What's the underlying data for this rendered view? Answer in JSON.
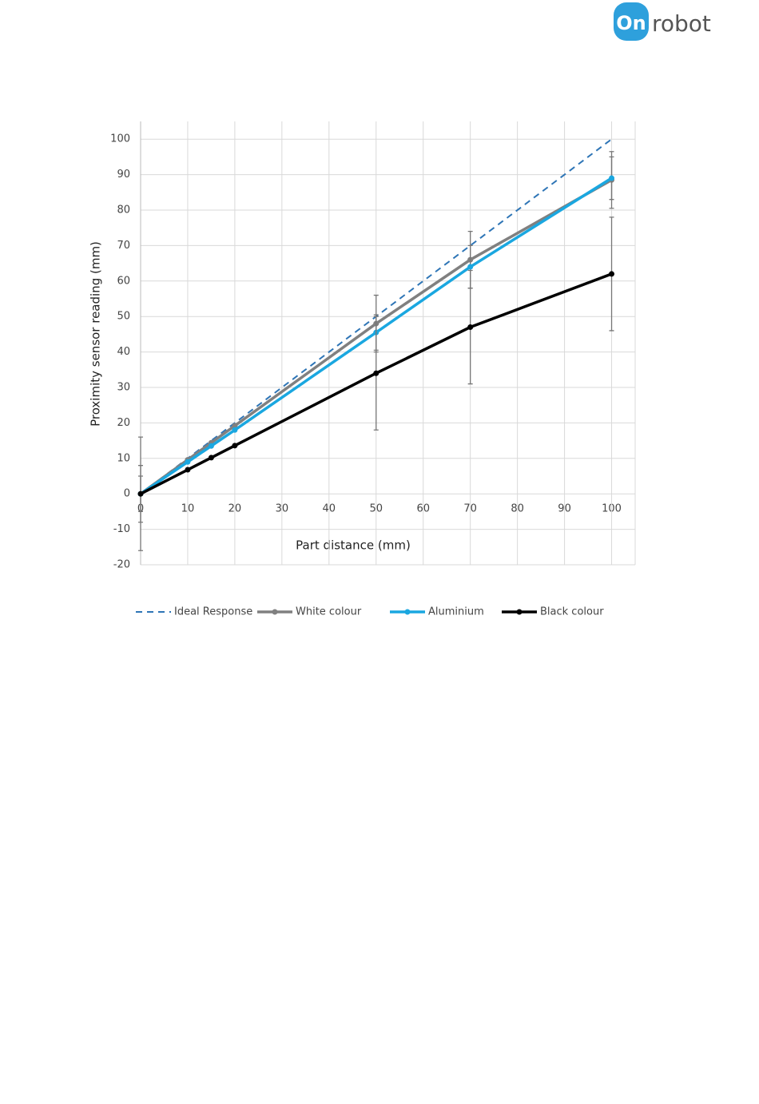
{
  "logo": {
    "mark": "On",
    "text": "robot"
  },
  "chart_data": {
    "type": "line",
    "x_label": "Part distance (mm)",
    "y_label": "Proximity sensor reading (mm)",
    "x": [
      0,
      10,
      15,
      20,
      50,
      70,
      100
    ],
    "series": [
      {
        "name": "Ideal Response",
        "color": "#2e75b6",
        "dashed": true,
        "values": [
          0,
          10,
          15,
          20,
          50,
          70,
          100
        ]
      },
      {
        "name": "White colour",
        "color": "#808080",
        "values": [
          0,
          9.6,
          14.4,
          19.2,
          48,
          66,
          88.5
        ],
        "errors": [
          8,
          null,
          null,
          null,
          8,
          8,
          8
        ]
      },
      {
        "name": "Aluminium",
        "color": "#1aa7e0",
        "values": [
          0,
          9,
          13.5,
          18,
          45.5,
          64,
          89
        ],
        "errors": [
          5,
          null,
          null,
          null,
          5,
          6,
          6
        ]
      },
      {
        "name": "Black colour",
        "color": "#000000",
        "values": [
          0,
          6.8,
          10.2,
          13.6,
          34,
          47,
          62
        ],
        "errors": [
          16,
          null,
          null,
          null,
          16,
          16,
          16
        ]
      }
    ],
    "xlim": [
      0,
      105
    ],
    "xticks": [
      0,
      10,
      20,
      30,
      40,
      50,
      60,
      70,
      80,
      90,
      100
    ],
    "ylim": [
      -20,
      105
    ],
    "yticks": [
      -20,
      -10,
      0,
      10,
      20,
      30,
      40,
      50,
      60,
      70,
      80,
      90,
      100
    ],
    "grid": true,
    "legend": "bottom"
  }
}
